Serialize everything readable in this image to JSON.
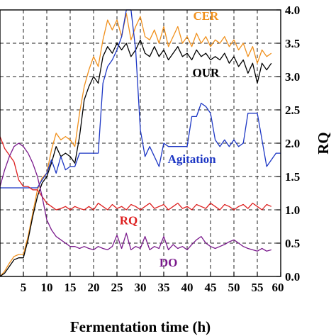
{
  "chart_data": {
    "type": "line",
    "xlabel": "Fermentation time (h)",
    "ylabel_right": "RQ",
    "xlim": [
      0,
      60
    ],
    "ylim_right": [
      0,
      4
    ],
    "x_ticks": [
      5,
      10,
      15,
      20,
      25,
      30,
      35,
      40,
      45,
      50,
      55,
      60
    ],
    "x_tick_labels": [
      "5",
      "10",
      "15",
      "20",
      "25",
      "30",
      "35",
      "40",
      "45",
      "50",
      "55",
      "60"
    ],
    "y_ticks": [
      0,
      0.5,
      1,
      1.5,
      2,
      2.5,
      3,
      3.5,
      4
    ],
    "y_tick_labels": [
      "0.0",
      "0.5",
      "1.0",
      "1.5",
      "2.0",
      "2.5",
      "3.0",
      "3.5",
      "4.0"
    ],
    "grid": true,
    "series": [
      {
        "name": "CER",
        "color": "#f0901c",
        "points": [
          [
            0,
            0
          ],
          [
            1,
            0.08
          ],
          [
            2,
            0.2
          ],
          [
            3,
            0.3
          ],
          [
            4,
            0.33
          ],
          [
            5,
            0.33
          ],
          [
            6,
            0.6
          ],
          [
            7,
            0.95
          ],
          [
            8,
            1.3
          ],
          [
            9,
            1.48
          ],
          [
            10,
            1.55
          ],
          [
            11,
            1.9
          ],
          [
            12,
            2.15
          ],
          [
            13,
            2.05
          ],
          [
            14,
            2.1
          ],
          [
            15,
            2.05
          ],
          [
            16,
            1.95
          ],
          [
            17,
            2.45
          ],
          [
            18,
            2.85
          ],
          [
            19,
            3.1
          ],
          [
            20,
            3.3
          ],
          [
            21,
            3.15
          ],
          [
            22,
            3.55
          ],
          [
            23,
            3.85
          ],
          [
            24,
            3.7
          ],
          [
            25,
            3.85
          ],
          [
            26,
            3.6
          ],
          [
            27,
            3.95
          ],
          [
            28,
            3.55
          ],
          [
            29,
            3.75
          ],
          [
            30,
            3.9
          ],
          [
            31,
            3.6
          ],
          [
            32,
            3.55
          ],
          [
            33,
            3.7
          ],
          [
            34,
            3.5
          ],
          [
            35,
            3.75
          ],
          [
            36,
            3.45
          ],
          [
            37,
            3.6
          ],
          [
            38,
            3.75
          ],
          [
            39,
            3.5
          ],
          [
            40,
            3.6
          ],
          [
            41,
            3.45
          ],
          [
            42,
            3.65
          ],
          [
            43,
            3.5
          ],
          [
            44,
            3.6
          ],
          [
            45,
            3.45
          ],
          [
            46,
            3.55
          ],
          [
            47,
            3.5
          ],
          [
            48,
            3.6
          ],
          [
            49,
            3.45
          ],
          [
            50,
            3.55
          ],
          [
            51,
            3.4
          ],
          [
            52,
            3.5
          ],
          [
            53,
            3.3
          ],
          [
            54,
            3.45
          ],
          [
            55,
            3.2
          ],
          [
            56,
            3.4
          ],
          [
            57,
            3.3
          ],
          [
            58,
            3.35
          ]
        ]
      },
      {
        "name": "OUR",
        "color": "#000000",
        "points": [
          [
            0,
            0
          ],
          [
            1,
            0.05
          ],
          [
            2,
            0.15
          ],
          [
            3,
            0.25
          ],
          [
            4,
            0.28
          ],
          [
            5,
            0.28
          ],
          [
            6,
            0.55
          ],
          [
            7,
            0.9
          ],
          [
            8,
            1.2
          ],
          [
            9,
            1.4
          ],
          [
            10,
            1.5
          ],
          [
            11,
            1.7
          ],
          [
            12,
            1.95
          ],
          [
            13,
            1.8
          ],
          [
            14,
            1.85
          ],
          [
            15,
            1.8
          ],
          [
            16,
            1.7
          ],
          [
            17,
            2.1
          ],
          [
            18,
            2.65
          ],
          [
            19,
            2.85
          ],
          [
            20,
            3.0
          ],
          [
            21,
            2.9
          ],
          [
            22,
            3.3
          ],
          [
            23,
            3.45
          ],
          [
            24,
            3.35
          ],
          [
            25,
            3.5
          ],
          [
            26,
            3.4
          ],
          [
            27,
            3.5
          ],
          [
            28,
            3.3
          ],
          [
            29,
            3.4
          ],
          [
            30,
            3.55
          ],
          [
            31,
            3.35
          ],
          [
            32,
            3.3
          ],
          [
            33,
            3.45
          ],
          [
            34,
            3.3
          ],
          [
            35,
            3.4
          ],
          [
            36,
            3.25
          ],
          [
            37,
            3.35
          ],
          [
            38,
            3.45
          ],
          [
            39,
            3.3
          ],
          [
            40,
            3.35
          ],
          [
            41,
            3.25
          ],
          [
            42,
            3.4
          ],
          [
            43,
            3.3
          ],
          [
            44,
            3.35
          ],
          [
            45,
            3.25
          ],
          [
            46,
            3.3
          ],
          [
            47,
            3.25
          ],
          [
            48,
            3.35
          ],
          [
            49,
            3.2
          ],
          [
            50,
            3.3
          ],
          [
            51,
            3.15
          ],
          [
            52,
            3.25
          ],
          [
            53,
            3.05
          ],
          [
            54,
            3.2
          ],
          [
            55,
            2.9
          ],
          [
            56,
            3.2
          ],
          [
            57,
            3.1
          ],
          [
            58,
            3.2
          ]
        ]
      },
      {
        "name": "Agitation",
        "color": "#1c36c4",
        "points": [
          [
            0,
            1.33
          ],
          [
            8,
            1.33
          ],
          [
            9,
            1.45
          ],
          [
            10,
            1.55
          ],
          [
            11,
            1.75
          ],
          [
            12,
            1.55
          ],
          [
            13,
            1.8
          ],
          [
            14,
            1.6
          ],
          [
            15,
            1.65
          ],
          [
            16,
            1.65
          ],
          [
            17,
            1.85
          ],
          [
            18,
            1.85
          ],
          [
            19,
            1.85
          ],
          [
            20,
            1.85
          ],
          [
            21,
            1.85
          ],
          [
            22,
            2.9
          ],
          [
            23,
            3.15
          ],
          [
            24,
            3.25
          ],
          [
            25,
            3.4
          ],
          [
            26,
            3.6
          ],
          [
            27,
            4.0
          ],
          [
            28,
            4.0
          ],
          [
            29,
            3.4
          ],
          [
            30,
            2.2
          ],
          [
            31,
            1.8
          ],
          [
            32,
            1.95
          ],
          [
            33,
            1.8
          ],
          [
            34,
            1.65
          ],
          [
            35,
            2.0
          ],
          [
            36,
            1.95
          ],
          [
            37,
            1.95
          ],
          [
            38,
            1.95
          ],
          [
            39,
            1.95
          ],
          [
            40,
            1.95
          ],
          [
            41,
            2.4
          ],
          [
            42,
            2.4
          ],
          [
            43,
            2.6
          ],
          [
            44,
            2.55
          ],
          [
            45,
            2.45
          ],
          [
            46,
            2.05
          ],
          [
            47,
            1.95
          ],
          [
            48,
            2.05
          ],
          [
            49,
            1.95
          ],
          [
            50,
            2.05
          ],
          [
            51,
            1.95
          ],
          [
            52,
            2.0
          ],
          [
            53,
            2.45
          ],
          [
            54,
            2.45
          ],
          [
            55,
            2.45
          ],
          [
            56,
            2.05
          ],
          [
            57,
            1.65
          ],
          [
            58,
            1.75
          ],
          [
            59,
            1.85
          ],
          [
            60,
            1.85
          ]
        ]
      },
      {
        "name": "RQ",
        "color": "#dd1f1f",
        "points": [
          [
            0,
            2.1
          ],
          [
            1,
            1.92
          ],
          [
            2,
            1.82
          ],
          [
            3,
            1.72
          ],
          [
            4,
            1.45
          ],
          [
            5,
            1.35
          ],
          [
            6,
            1.35
          ],
          [
            7,
            1.3
          ],
          [
            8,
            1.3
          ],
          [
            9,
            1.2
          ],
          [
            10,
            1.1
          ],
          [
            11,
            1.05
          ],
          [
            12,
            1.0
          ],
          [
            13,
            1.02
          ],
          [
            14,
            1.05
          ],
          [
            15,
            1.0
          ],
          [
            16,
            1.05
          ],
          [
            17,
            1.02
          ],
          [
            18,
            1.0
          ],
          [
            19,
            1.05
          ],
          [
            20,
            1.0
          ],
          [
            21,
            1.1
          ],
          [
            22,
            1.05
          ],
          [
            23,
            1.0
          ],
          [
            24,
            1.08
          ],
          [
            25,
            1.02
          ],
          [
            26,
            1.05
          ],
          [
            27,
            1.0
          ],
          [
            28,
            1.08
          ],
          [
            29,
            1.05
          ],
          [
            30,
            1.0
          ],
          [
            31,
            1.05
          ],
          [
            32,
            1.1
          ],
          [
            33,
            1.02
          ],
          [
            34,
            1.05
          ],
          [
            35,
            1.08
          ],
          [
            36,
            1.0
          ],
          [
            37,
            1.05
          ],
          [
            38,
            1.1
          ],
          [
            39,
            1.02
          ],
          [
            40,
            1.05
          ],
          [
            41,
            1.0
          ],
          [
            42,
            1.08
          ],
          [
            43,
            1.05
          ],
          [
            44,
            1.02
          ],
          [
            45,
            1.1
          ],
          [
            46,
            1.05
          ],
          [
            47,
            1.0
          ],
          [
            48,
            1.08
          ],
          [
            49,
            1.05
          ],
          [
            50,
            1.0
          ],
          [
            51,
            1.05
          ],
          [
            52,
            1.08
          ],
          [
            53,
            1.02
          ],
          [
            54,
            1.1
          ],
          [
            55,
            1.05
          ],
          [
            56,
            1.0
          ],
          [
            57,
            1.08
          ],
          [
            58,
            1.05
          ]
        ]
      },
      {
        "name": "DO",
        "color": "#7a1a8c",
        "points": [
          [
            0,
            1.35
          ],
          [
            1,
            1.6
          ],
          [
            2,
            1.8
          ],
          [
            3,
            1.95
          ],
          [
            4,
            2.0
          ],
          [
            5,
            1.95
          ],
          [
            6,
            1.85
          ],
          [
            7,
            1.7
          ],
          [
            8,
            1.5
          ],
          [
            9,
            1.2
          ],
          [
            10,
            0.85
          ],
          [
            11,
            0.7
          ],
          [
            12,
            0.6
          ],
          [
            13,
            0.55
          ],
          [
            14,
            0.5
          ],
          [
            15,
            0.45
          ],
          [
            16,
            0.45
          ],
          [
            17,
            0.42
          ],
          [
            18,
            0.45
          ],
          [
            19,
            0.42
          ],
          [
            20,
            0.4
          ],
          [
            21,
            0.45
          ],
          [
            22,
            0.42
          ],
          [
            23,
            0.4
          ],
          [
            24,
            0.45
          ],
          [
            25,
            0.62
          ],
          [
            26,
            0.42
          ],
          [
            27,
            0.65
          ],
          [
            28,
            0.4
          ],
          [
            29,
            0.45
          ],
          [
            30,
            0.42
          ],
          [
            31,
            0.6
          ],
          [
            32,
            0.4
          ],
          [
            33,
            0.45
          ],
          [
            34,
            0.42
          ],
          [
            35,
            0.6
          ],
          [
            36,
            0.4
          ],
          [
            37,
            0.48
          ],
          [
            38,
            0.42
          ],
          [
            39,
            0.45
          ],
          [
            40,
            0.4
          ],
          [
            41,
            0.48
          ],
          [
            42,
            0.55
          ],
          [
            43,
            0.6
          ],
          [
            44,
            0.5
          ],
          [
            45,
            0.45
          ],
          [
            46,
            0.42
          ],
          [
            47,
            0.45
          ],
          [
            48,
            0.48
          ],
          [
            49,
            0.52
          ],
          [
            50,
            0.55
          ],
          [
            51,
            0.5
          ],
          [
            52,
            0.45
          ],
          [
            53,
            0.42
          ],
          [
            54,
            0.4
          ],
          [
            55,
            0.38
          ],
          [
            56,
            0.42
          ],
          [
            57,
            0.38
          ],
          [
            58,
            0.4
          ]
        ]
      }
    ],
    "labels": [
      {
        "text": "CER",
        "color": "#f0901c",
        "x": 44,
        "y": 3.85
      },
      {
        "text": "OUR",
        "color": "#000000",
        "x": 44,
        "y": 3.0
      },
      {
        "text": "Agitation",
        "color": "#1c36c4",
        "x": 41,
        "y": 1.7
      },
      {
        "text": "RQ",
        "color": "#dd1f1f",
        "x": 27.5,
        "y": 0.78
      },
      {
        "text": "DO",
        "color": "#7a1a8c",
        "x": 36,
        "y": 0.15
      }
    ]
  }
}
